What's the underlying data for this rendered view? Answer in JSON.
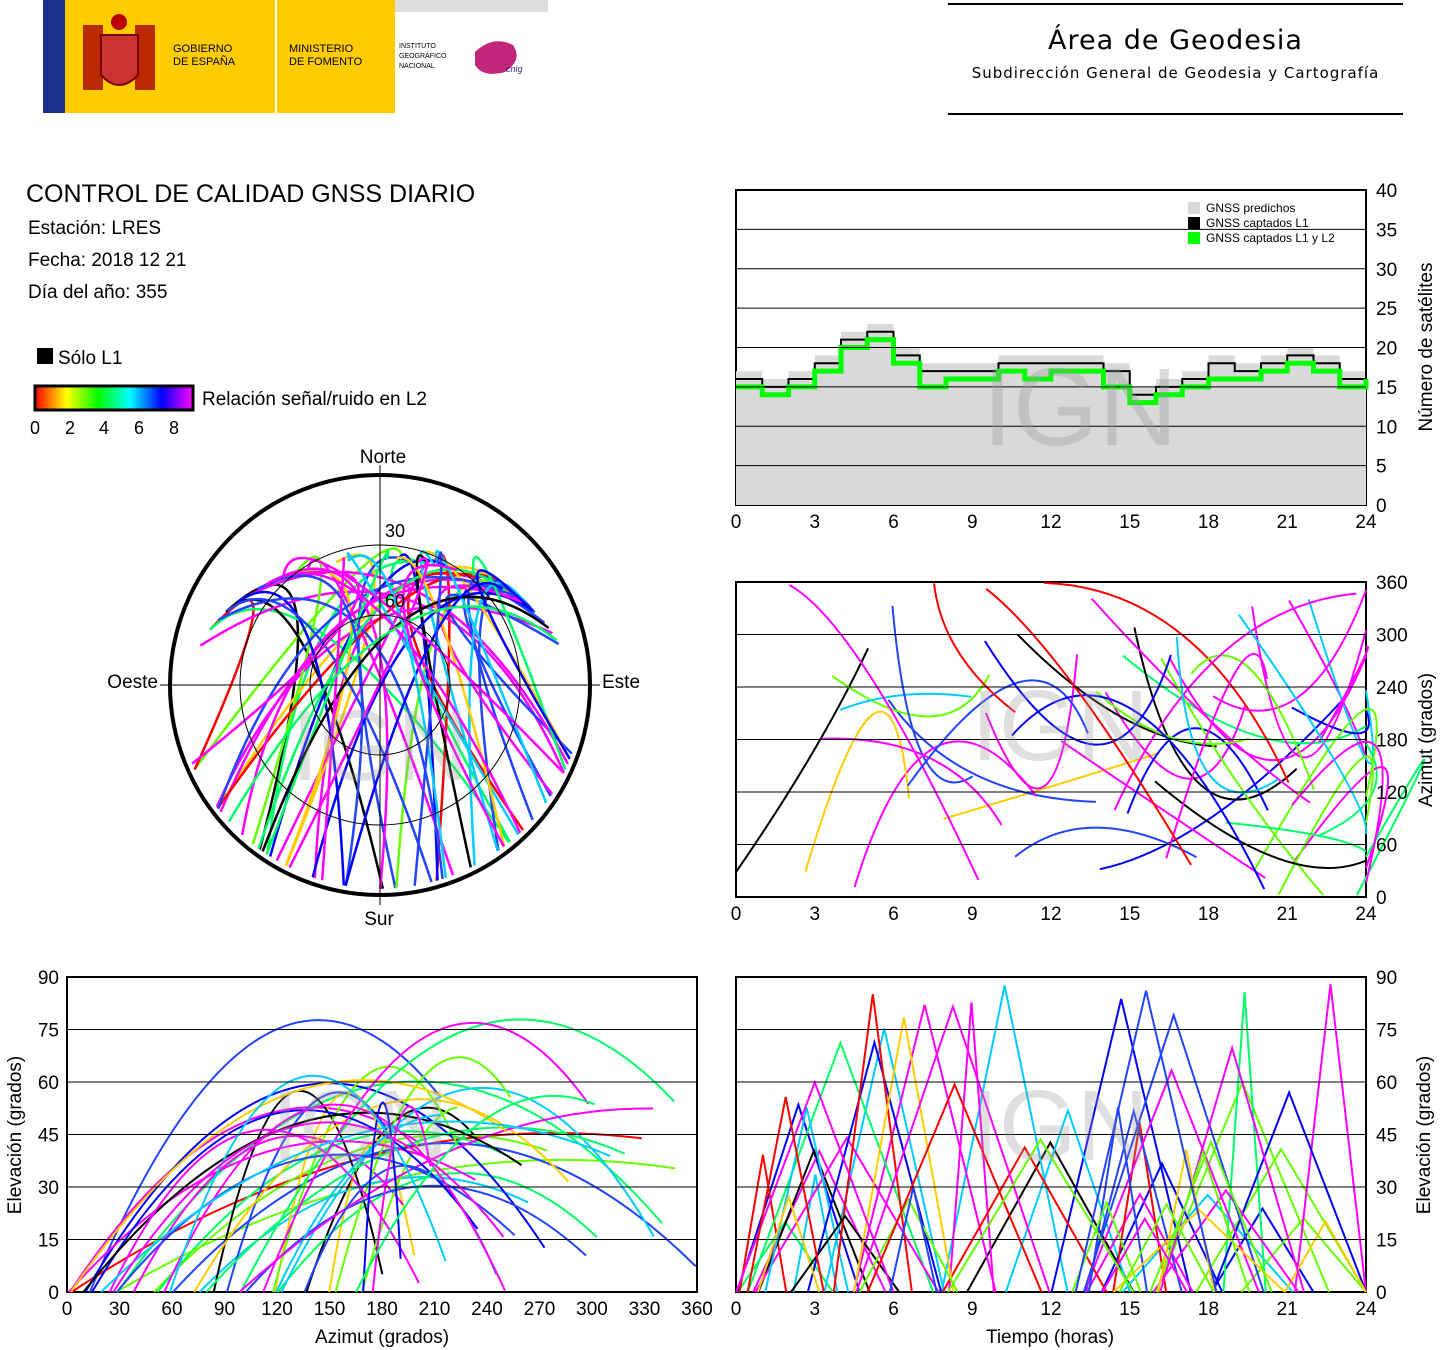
{
  "header": {
    "gov_line1": "GOBIERNO",
    "gov_line2": "DE ESPAÑA",
    "min_line1": "MINISTERIO",
    "min_line2": "DE FOMENTO",
    "ign_line1": "INSTITUTO",
    "ign_line2": "GEOGRÁFICO",
    "ign_line3": "NACIONAL",
    "cnig": "cnig",
    "area_title": "Área de Geodesia",
    "area_subtitle": "Subdirección General de Geodesia y Cartografía"
  },
  "report": {
    "title": "CONTROL DE CALIDAD GNSS DIARIO",
    "station": "Estación: LRES",
    "date": "Fecha: 2018 12 21",
    "doy": "Día del año: 355"
  },
  "legend": {
    "l1_only": "Sólo L1",
    "snr_label": "Relación señal/ruido en L2",
    "snr_ticks": [
      "0",
      "2",
      "4",
      "6",
      "8"
    ],
    "colors": [
      "#000000",
      "#ff0000",
      "#ffff00",
      "#00ff00",
      "#00ffff",
      "#0000ff",
      "#ff00ff"
    ]
  },
  "watermark": "IGN",
  "chart_data": [
    {
      "type": "area",
      "id": "satellite-count",
      "ylabel": "Número de satélites",
      "xlim": [
        0,
        24
      ],
      "ylim": [
        0,
        40
      ],
      "x_ticks": [
        "0",
        "3",
        "6",
        "9",
        "12",
        "15",
        "18",
        "21",
        "24"
      ],
      "y_ticks": [
        "0",
        "5",
        "10",
        "15",
        "20",
        "25",
        "30",
        "35",
        "40"
      ],
      "legend_position": "top-right",
      "x": [
        0,
        1,
        2,
        3,
        4,
        5,
        6,
        7,
        8,
        9,
        10,
        11,
        12,
        13,
        14,
        15,
        16,
        17,
        18,
        19,
        20,
        21,
        22,
        23,
        24
      ],
      "series": [
        {
          "name": "GNSS predichos",
          "color": "#d9d9d9",
          "values": [
            17,
            16,
            17,
            19,
            22,
            23,
            20,
            18,
            18,
            18,
            19,
            19,
            19,
            19,
            18,
            15,
            16,
            17,
            19,
            18,
            19,
            20,
            19,
            17,
            18
          ]
        },
        {
          "name": "GNSS captados L1",
          "color": "#000000",
          "values": [
            16,
            15,
            16,
            18,
            21,
            22,
            19,
            17,
            17,
            17,
            18,
            18,
            18,
            18,
            17,
            14,
            15,
            16,
            18,
            17,
            18,
            19,
            18,
            16,
            17
          ]
        },
        {
          "name": "GNSS captados L1 y L2",
          "color": "#00ff00",
          "values": [
            15,
            14,
            15,
            17,
            20,
            21,
            18,
            15,
            16,
            16,
            17,
            16,
            17,
            17,
            15,
            13,
            14,
            15,
            16,
            16,
            17,
            18,
            17,
            15,
            16
          ]
        }
      ]
    },
    {
      "type": "scatter",
      "id": "azimuth-vs-time",
      "ylabel": "Azimut (grados)",
      "xlim": [
        0,
        24
      ],
      "ylim": [
        0,
        360
      ],
      "x_ticks": [
        "0",
        "3",
        "6",
        "9",
        "12",
        "15",
        "18",
        "21",
        "24"
      ],
      "y_ticks": [
        "0",
        "60",
        "120",
        "180",
        "240",
        "300",
        "360"
      ]
    },
    {
      "type": "scatter",
      "id": "polar-skyplot",
      "directions": {
        "north": "Norte",
        "south": "Sur",
        "east": "Este",
        "west": "Oeste"
      },
      "ring_labels": [
        "30",
        "60"
      ]
    },
    {
      "type": "scatter",
      "id": "elevation-vs-azimuth",
      "xlabel": "Azimut (grados)",
      "ylabel": "Elevación (grados)",
      "xlim": [
        0,
        360
      ],
      "ylim": [
        0,
        90
      ],
      "x_ticks": [
        "0",
        "30",
        "60",
        "90",
        "120",
        "150",
        "180",
        "210",
        "240",
        "270",
        "300",
        "330",
        "360"
      ],
      "y_ticks": [
        "0",
        "15",
        "30",
        "45",
        "60",
        "75",
        "90"
      ]
    },
    {
      "type": "line",
      "id": "elevation-vs-time",
      "xlabel": "Tiempo (horas)",
      "ylabel": "Elevación (grados)",
      "xlim": [
        0,
        24
      ],
      "ylim": [
        0,
        90
      ],
      "x_ticks": [
        "0",
        "3",
        "6",
        "9",
        "12",
        "15",
        "18",
        "21",
        "24"
      ],
      "y_ticks": [
        "0",
        "15",
        "30",
        "45",
        "60",
        "75",
        "90"
      ]
    }
  ]
}
